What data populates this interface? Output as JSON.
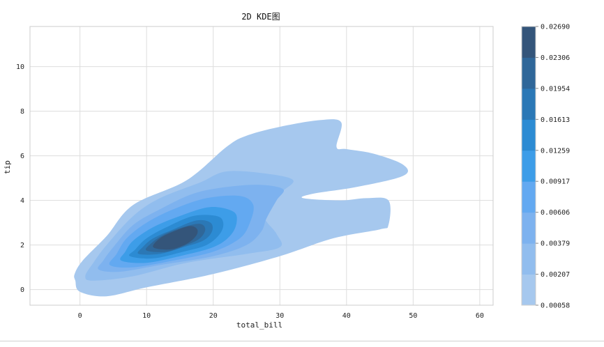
{
  "chart_data": {
    "type": "kde2d-filled-contour",
    "title": "2D KDE图",
    "xlabel": "total_bill",
    "ylabel": "tip",
    "xlim": [
      -7.5,
      62
    ],
    "ylim": [
      -0.7,
      11.8
    ],
    "xticks": [
      0,
      10,
      20,
      30,
      40,
      50,
      60
    ],
    "yticks": [
      0,
      2,
      4,
      6,
      8,
      10
    ],
    "grid": true,
    "colorbar": {
      "location": "right",
      "levels": [
        0.00058,
        0.00207,
        0.00379,
        0.00606,
        0.00917,
        0.01259,
        0.01613,
        0.01954,
        0.02306,
        0.0269
      ],
      "tick_labels": [
        "0.00058",
        "0.00207",
        "0.00379",
        "0.00606",
        "0.00917",
        "0.01259",
        "0.01613",
        "0.01954",
        "0.02306",
        "0.02690"
      ],
      "colors": [
        "#a6c8ee",
        "#91bdee",
        "#7db2ef",
        "#63a9f1",
        "#3d9de8",
        "#2c8bd3",
        "#2b78b6",
        "#2f6799",
        "#34557a"
      ]
    },
    "contours": [
      {
        "level": 0.00058,
        "color": "#a6c8ee",
        "points": [
          [
            -0.7,
            0.4
          ],
          [
            0,
            -0.1
          ],
          [
            4,
            -0.3
          ],
          [
            10,
            0.1
          ],
          [
            20,
            0.7
          ],
          [
            30,
            1.5
          ],
          [
            38,
            2.3
          ],
          [
            45,
            2.7
          ],
          [
            46.3,
            2.9
          ],
          [
            46.3,
            4
          ],
          [
            43,
            4.1
          ],
          [
            39,
            4
          ],
          [
            33.5,
            4.1
          ],
          [
            35,
            4.3
          ],
          [
            41.5,
            4.6
          ],
          [
            48.5,
            5.1
          ],
          [
            48.5,
            5.6
          ],
          [
            44,
            6.1
          ],
          [
            40,
            6.3
          ],
          [
            38.5,
            6.4
          ],
          [
            39.2,
            7.5
          ],
          [
            36,
            7.6
          ],
          [
            30,
            7.3
          ],
          [
            25,
            6.9
          ],
          [
            22,
            6.4
          ],
          [
            16,
            4.9
          ],
          [
            8,
            3.8
          ],
          [
            4,
            2.4
          ],
          [
            0.4,
            1.3
          ],
          [
            -0.8,
            0.7
          ]
        ]
      },
      {
        "level": 0.00207,
        "color": "#91bdee",
        "points": [
          [
            0.8,
            0.6
          ],
          [
            2,
            0.4
          ],
          [
            8,
            0.6
          ],
          [
            16,
            1.2
          ],
          [
            25,
            1.6
          ],
          [
            30,
            1.9
          ],
          [
            29.5,
            2.5
          ],
          [
            27.5,
            3.4
          ],
          [
            30,
            4.3
          ],
          [
            32,
            4.9
          ],
          [
            28,
            5.2
          ],
          [
            22,
            5.3
          ],
          [
            18,
            4.8
          ],
          [
            12,
            4.1
          ],
          [
            8,
            3.3
          ],
          [
            4,
            2
          ],
          [
            2,
            1.2
          ]
        ]
      },
      {
        "level": 0.00379,
        "color": "#7db2ef",
        "points": [
          [
            2.8,
            0.9
          ],
          [
            6,
            0.8
          ],
          [
            12,
            1.1
          ],
          [
            20,
            1.5
          ],
          [
            25,
            2
          ],
          [
            27.2,
            2.6
          ],
          [
            28,
            3.2
          ],
          [
            29.5,
            4
          ],
          [
            30.5,
            4.5
          ],
          [
            27,
            4.7
          ],
          [
            22,
            4.6
          ],
          [
            17,
            4.3
          ],
          [
            12,
            3.6
          ],
          [
            8,
            2.9
          ],
          [
            5,
            1.9
          ],
          [
            3.5,
            1.3
          ]
        ]
      },
      {
        "level": 0.00606,
        "color": "#63a9f1",
        "points": [
          [
            4.5,
            1.1
          ],
          [
            8,
            1
          ],
          [
            14,
            1.3
          ],
          [
            20,
            1.7
          ],
          [
            24,
            2.3
          ],
          [
            25.5,
            3
          ],
          [
            26,
            3.8
          ],
          [
            24,
            4.2
          ],
          [
            19,
            4.1
          ],
          [
            14,
            3.6
          ],
          [
            10,
            3
          ],
          [
            7,
            2.3
          ],
          [
            5.5,
            1.6
          ]
        ]
      },
      {
        "level": 0.00917,
        "color": "#3d9de8",
        "points": [
          [
            6.2,
            1.3
          ],
          [
            10,
            1.2
          ],
          [
            15,
            1.5
          ],
          [
            20,
            1.9
          ],
          [
            22.5,
            2.4
          ],
          [
            23.5,
            3
          ],
          [
            23,
            3.5
          ],
          [
            19.5,
            3.7
          ],
          [
            15,
            3.3
          ],
          [
            11,
            2.8
          ],
          [
            8,
            2.2
          ],
          [
            6.8,
            1.7
          ]
        ]
      },
      {
        "level": 0.01259,
        "color": "#2c8bd3",
        "points": [
          [
            7.5,
            1.5
          ],
          [
            11,
            1.4
          ],
          [
            15.5,
            1.7
          ],
          [
            19,
            2
          ],
          [
            21,
            2.5
          ],
          [
            21.5,
            3
          ],
          [
            20.5,
            3.3
          ],
          [
            17,
            3.3
          ],
          [
            13,
            2.8
          ],
          [
            10,
            2.3
          ],
          [
            8.3,
            1.8
          ]
        ]
      },
      {
        "level": 0.01613,
        "color": "#2b78b6",
        "points": [
          [
            8.8,
            1.6
          ],
          [
            12,
            1.6
          ],
          [
            15.5,
            1.9
          ],
          [
            18.5,
            2.2
          ],
          [
            19.8,
            2.6
          ],
          [
            19.6,
            3
          ],
          [
            17.5,
            3.1
          ],
          [
            14,
            2.7
          ],
          [
            11,
            2.3
          ],
          [
            9.4,
            1.9
          ]
        ]
      },
      {
        "level": 0.01954,
        "color": "#2f6799",
        "points": [
          [
            10,
            1.75
          ],
          [
            13,
            1.7
          ],
          [
            16,
            2
          ],
          [
            18,
            2.3
          ],
          [
            18.8,
            2.7
          ],
          [
            18,
            2.95
          ],
          [
            15.5,
            2.8
          ],
          [
            12.5,
            2.45
          ],
          [
            10.6,
            2.05
          ]
        ]
      },
      {
        "level": 0.02306,
        "color": "#34557a",
        "points": [
          [
            11,
            1.9
          ],
          [
            13.5,
            1.8
          ],
          [
            16,
            2.05
          ],
          [
            17.4,
            2.4
          ],
          [
            17.6,
            2.7
          ],
          [
            16.5,
            2.85
          ],
          [
            14,
            2.6
          ],
          [
            12,
            2.3
          ]
        ]
      }
    ]
  }
}
